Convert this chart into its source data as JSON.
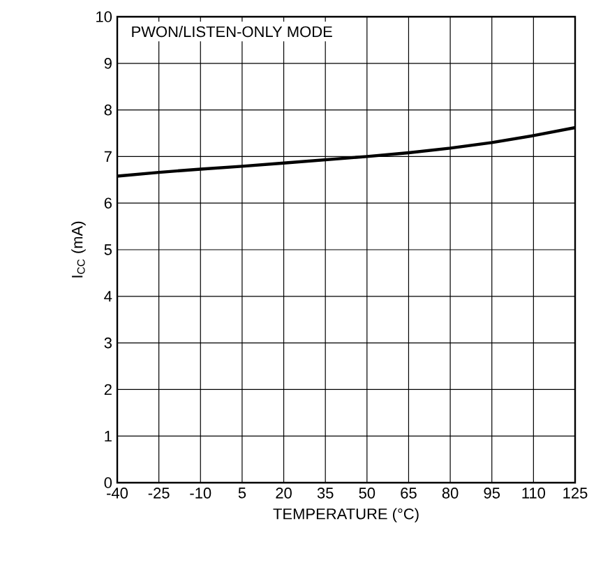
{
  "chart_data": {
    "type": "line",
    "title": "PWON/LISTEN-ONLY MODE",
    "xlabel": "TEMPERATURE (°C)",
    "ylabel": "I$_{CC}$ (mA)",
    "x": [
      -40,
      -25,
      -10,
      5,
      20,
      35,
      50,
      65,
      80,
      95,
      110,
      125
    ],
    "series": [
      {
        "color": "#000000",
        "values": [
          6.58,
          6.66,
          6.73,
          6.79,
          6.86,
          6.93,
          7.0,
          7.08,
          7.18,
          7.3,
          7.45,
          7.62
        ]
      }
    ],
    "xlim": [
      -40,
      125
    ],
    "xticks": [
      -40,
      -25,
      -10,
      5,
      20,
      35,
      50,
      65,
      80,
      95,
      110,
      125
    ],
    "ylim": [
      0,
      10
    ],
    "yticks": [
      0,
      1,
      2,
      3,
      4,
      5,
      6,
      7,
      8,
      9,
      10
    ],
    "grid": true,
    "marker": "none",
    "line_style": "solid"
  }
}
